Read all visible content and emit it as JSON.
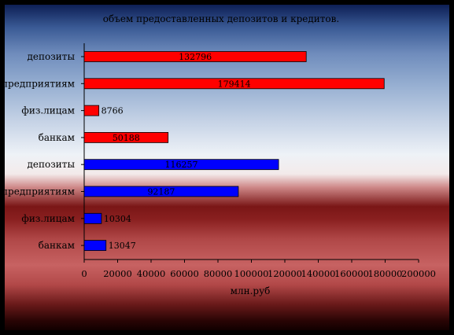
{
  "chart_data": {
    "type": "bar",
    "orientation": "horizontal",
    "title": "объем предоставленных депозитов и кредитов.",
    "xlabel": "млн.руб",
    "ylabel": "",
    "xlim": [
      0,
      200000
    ],
    "x_ticks": [
      "0",
      "20000",
      "40000",
      "60000",
      "80000",
      "100000",
      "120000",
      "140000",
      "160000",
      "180000",
      "200000"
    ],
    "grid": false,
    "legend": "none",
    "bars": [
      {
        "category": "депозиты",
        "value": 132796,
        "label": "132796",
        "color": "#ff0000"
      },
      {
        "category": "предприятиям",
        "value": 179414,
        "label": "179414",
        "color": "#ff0000"
      },
      {
        "category": "физ.лицам",
        "value": 8766,
        "label": "8766",
        "color": "#ff0000"
      },
      {
        "category": "банкам",
        "value": 50188,
        "label": "50188",
        "color": "#ff0000"
      },
      {
        "category": "депозиты",
        "value": 116257,
        "label": "116257",
        "color": "#0000ff"
      },
      {
        "category": "предприятиям",
        "value": 92187,
        "label": "92187",
        "color": "#0000ff"
      },
      {
        "category": "физ.лицам",
        "value": 10304,
        "label": "10304",
        "color": "#0000ff"
      },
      {
        "category": "банкам",
        "value": 13047,
        "label": "13047",
        "color": "#0000ff"
      }
    ]
  }
}
